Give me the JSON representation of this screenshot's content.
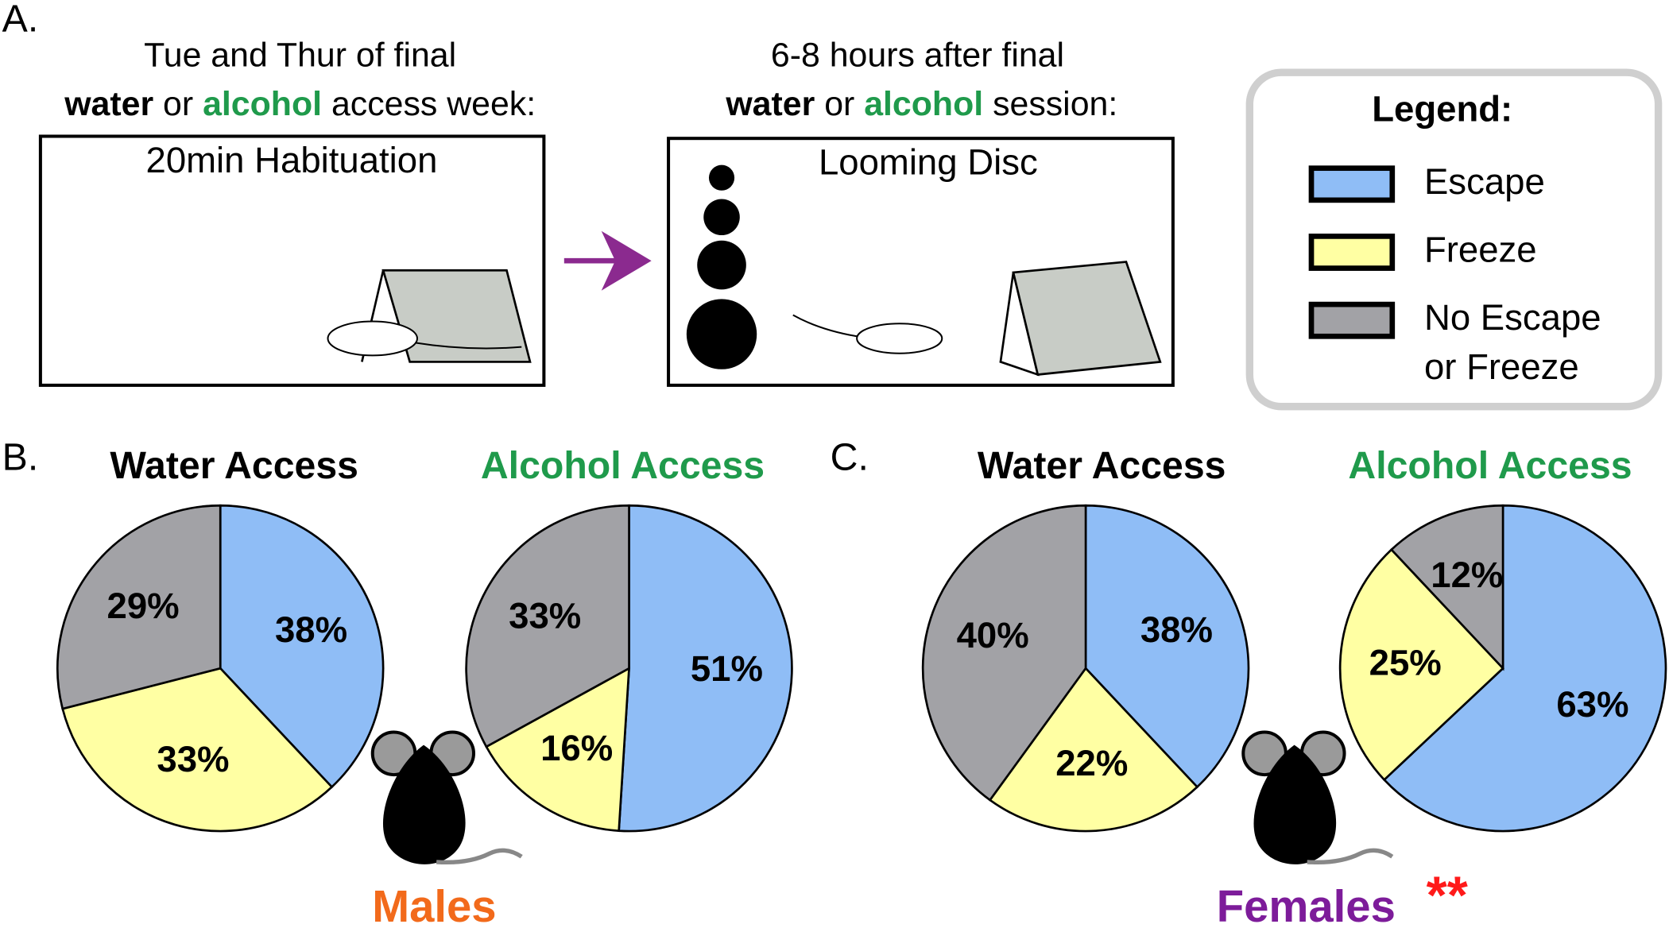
{
  "panel_a": {
    "label": "A.",
    "habituation": {
      "line1": "Tue and Thur of final",
      "line2": [
        "water",
        "or",
        "alcohol",
        "access week:"
      ],
      "box_label": "20min Habituation"
    },
    "looming": {
      "line1": "6-8 hours after final",
      "line2": [
        "water",
        "or",
        "alcohol",
        "session:"
      ],
      "box_label": "Looming Disc"
    }
  },
  "legend": {
    "title": "Legend:",
    "items": [
      {
        "label": [
          "Escape"
        ],
        "color": "#8fbdf6"
      },
      {
        "label": [
          "Freeze"
        ],
        "color": "#ffffa3"
      },
      {
        "label": [
          "No Escape",
          "or Freeze"
        ],
        "color": "#a2a2a6"
      }
    ]
  },
  "groups": [
    {
      "label": "B.",
      "sex": "Males"
    },
    {
      "label": "C.",
      "sex": "Females",
      "significance": "**"
    }
  ],
  "chart_data": [
    {
      "type": "pie",
      "title": "Water Access",
      "title_color": "#000000",
      "values": [
        38,
        33,
        29
      ],
      "value_labels": [
        "38%",
        "33%",
        "29%"
      ]
    },
    {
      "type": "pie",
      "title": "Alcohol Access",
      "title_color": "#1f9a4b",
      "values": [
        51,
        16,
        33
      ],
      "value_labels": [
        "51%",
        "16%",
        "33%"
      ]
    },
    {
      "type": "pie",
      "title": "Water Access",
      "title_color": "#000000",
      "values": [
        38,
        22,
        40
      ],
      "value_labels": [
        "38%",
        "22%",
        "40%"
      ]
    },
    {
      "type": "pie",
      "title": "Alcohol Access",
      "title_color": "#1f9a4b",
      "values": [
        63,
        25,
        12
      ],
      "value_labels": [
        "63%",
        "25%",
        "12%"
      ]
    }
  ]
}
